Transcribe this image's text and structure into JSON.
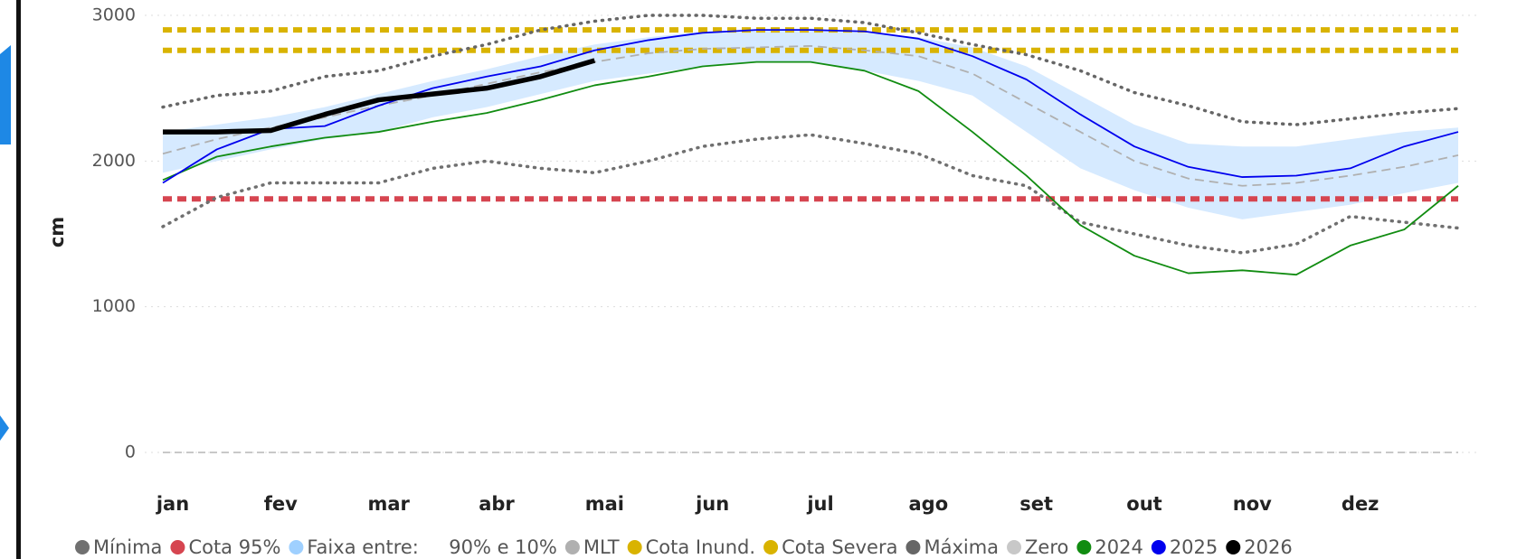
{
  "chart_data": {
    "type": "line",
    "y_label": "cm",
    "categories": [
      "jan",
      null,
      "fev",
      null,
      "mar",
      null,
      "abr",
      null,
      "mai",
      null,
      "jun",
      null,
      "jul",
      null,
      "ago",
      null,
      "set",
      null,
      "out",
      null,
      "nov",
      null,
      "dez",
      null,
      null
    ],
    "ylim": [
      0,
      3000
    ],
    "yticks": [
      0,
      1000,
      2000,
      3000
    ],
    "grid": true,
    "series": [
      {
        "name": "Mínima",
        "color": "#707070",
        "style": "dotted",
        "values": [
          1550,
          1750,
          1850,
          1850,
          1850,
          1950,
          2000,
          1950,
          1920,
          2000,
          2100,
          2150,
          2180,
          2120,
          2050,
          1900,
          1830,
          1580,
          1500,
          1420,
          1370,
          1430,
          1620,
          1580,
          1540
        ]
      },
      {
        "name": "Cota 95%",
        "color": "#d64550",
        "style": "hline",
        "value": 1740
      },
      {
        "name": "Faixa entre:     90% e 10%",
        "color": "#9fd0ff",
        "style": "band",
        "upper": [
          2200,
          2250,
          2300,
          2370,
          2460,
          2550,
          2630,
          2720,
          2800,
          2850,
          2890,
          2900,
          2910,
          2880,
          2850,
          2780,
          2650,
          2450,
          2250,
          2120,
          2100,
          2100,
          2150,
          2200,
          2230
        ],
        "lower": [
          1920,
          2000,
          2080,
          2150,
          2200,
          2300,
          2370,
          2460,
          2550,
          2600,
          2650,
          2680,
          2680,
          2620,
          2550,
          2450,
          2200,
          1950,
          1800,
          1680,
          1600,
          1650,
          1700,
          1780,
          1850
        ]
      },
      {
        "name": "MLT",
        "color": "#b0b0b0",
        "style": "dashed",
        "values": [
          2050,
          2150,
          2230,
          2300,
          2380,
          2450,
          2530,
          2610,
          2680,
          2740,
          2770,
          2780,
          2790,
          2760,
          2720,
          2600,
          2400,
          2200,
          2000,
          1880,
          1830,
          1850,
          1900,
          1960,
          2040
        ]
      },
      {
        "name": "Cota Inund.",
        "color": "#d9b300",
        "style": "hline",
        "value": 2900
      },
      {
        "name": "Cota Severa",
        "color": "#d9b300",
        "style": "hline",
        "value": 2760
      },
      {
        "name": "Máxima",
        "color": "#666666",
        "style": "dotted",
        "values": [
          2370,
          2450,
          2480,
          2580,
          2620,
          2720,
          2800,
          2900,
          2960,
          3000,
          3000,
          2980,
          2980,
          2950,
          2880,
          2800,
          2730,
          2620,
          2470,
          2380,
          2270,
          2250,
          2290,
          2330,
          2360
        ]
      },
      {
        "name": "Zero",
        "color": "#c8c8c8",
        "style": "hline",
        "value": 0
      },
      {
        "name": "2024",
        "color": "#118c11",
        "style": "solid",
        "values": [
          1870,
          2030,
          2100,
          2160,
          2200,
          2270,
          2330,
          2420,
          2520,
          2580,
          2650,
          2680,
          2680,
          2620,
          2480,
          2200,
          1900,
          1560,
          1350,
          1230,
          1250,
          1220,
          1420,
          1530,
          1830
        ]
      },
      {
        "name": "2025",
        "color": "#0000ee",
        "style": "solid",
        "values": [
          1850,
          2080,
          2220,
          2240,
          2380,
          2500,
          2580,
          2650,
          2760,
          2830,
          2880,
          2900,
          2900,
          2890,
          2840,
          2720,
          2560,
          2320,
          2100,
          1960,
          1890,
          1900,
          1950,
          2100,
          2200
        ]
      },
      {
        "name": "2026",
        "color": "#000000",
        "style": "thick",
        "values": [
          2200,
          2200,
          2210,
          2320,
          2420,
          2460,
          2500,
          2580,
          2690,
          null,
          null,
          null,
          null,
          null,
          null,
          null,
          null,
          null,
          null,
          null,
          null,
          null,
          null,
          null,
          null
        ]
      }
    ]
  }
}
